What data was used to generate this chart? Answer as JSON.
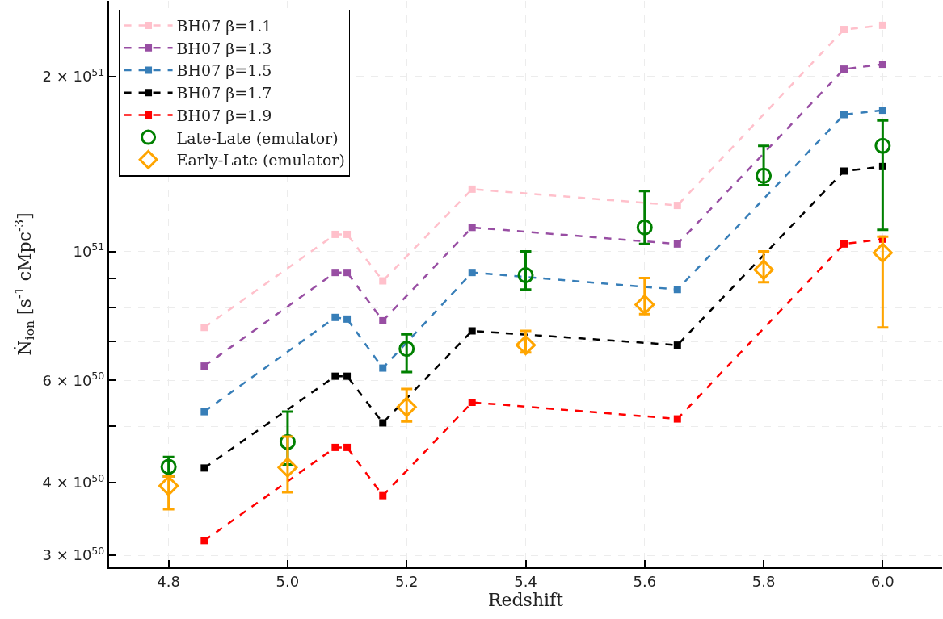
{
  "chart_data": {
    "type": "line",
    "xlabel": "Redshift",
    "ylabel": "Ṅ$_{ion}$ [s$^{-1}$ cMpc$^{-3}$]",
    "log": "y",
    "grid": true,
    "legend": "top left",
    "xlim": [
      4.7,
      6.1
    ],
    "xticks": [
      {
        "value": 4.8,
        "label": "4.8"
      },
      {
        "value": 5.0,
        "label": "5.0"
      },
      {
        "value": 5.2,
        "label": "5.2"
      },
      {
        "value": 5.4,
        "label": "5.4"
      },
      {
        "value": 5.6,
        "label": "5.6"
      },
      {
        "value": 5.8,
        "label": "5.8"
      },
      {
        "value": 6.0,
        "label": "6.0"
      }
    ],
    "ylim": [
      2.86e+50,
      2.7e+51
    ],
    "yticks": [
      {
        "value": 3e+50,
        "label": "3 × 10$^{50}$"
      },
      {
        "value": 4e+50,
        "label": "4 × 10$^{50}$"
      },
      {
        "value": 5e+50,
        "label": null
      },
      {
        "value": 6e+50,
        "label": "6 × 10$^{50}$"
      },
      {
        "value": 7e+50,
        "label": null
      },
      {
        "value": 8e+50,
        "label": null
      },
      {
        "value": 9e+50,
        "label": null
      },
      {
        "value": 1e+51,
        "label": "10$^{51}$"
      },
      {
        "value": 2e+51,
        "label": "2 × 10$^{51}$"
      }
    ],
    "series": [
      {
        "name": "BH07 β=1.1",
        "marker": "square",
        "line_style": "dashed",
        "color": "#ffc0cb",
        "x": [
          4.86,
          5.08,
          5.1,
          5.16,
          5.31,
          5.655,
          5.935,
          6.0
        ],
        "values": [
          7.4e+50,
          1.07e+51,
          1.07e+51,
          8.9e+50,
          1.28e+51,
          1.2e+51,
          2.41e+51,
          2.45e+51
        ]
      },
      {
        "name": "BH07 β=1.3",
        "marker": "square",
        "line_style": "dashed",
        "color": "#984ea3",
        "x": [
          4.86,
          5.08,
          5.1,
          5.16,
          5.31,
          5.655,
          5.935,
          6.0
        ],
        "values": [
          6.35e+50,
          9.2e+50,
          9.2e+50,
          7.6e+50,
          1.1e+51,
          1.03e+51,
          2.06e+51,
          2.1e+51
        ]
      },
      {
        "name": "BH07 β=1.5",
        "marker": "square",
        "line_style": "dashed",
        "color": "#377eb8",
        "x": [
          4.86,
          5.08,
          5.1,
          5.16,
          5.31,
          5.655,
          5.935,
          6.0
        ],
        "values": [
          5.3e+50,
          7.7e+50,
          7.65e+50,
          6.3e+50,
          9.2e+50,
          8.6e+50,
          1.72e+51,
          1.75e+51
        ]
      },
      {
        "name": "BH07 β=1.7",
        "marker": "square",
        "line_style": "dashed",
        "color": "#000000",
        "x": [
          4.86,
          5.08,
          5.1,
          5.16,
          5.31,
          5.655,
          5.935,
          6.0
        ],
        "values": [
          4.24e+50,
          6.1e+50,
          6.1e+50,
          5.07e+50,
          7.3e+50,
          6.9e+50,
          1.375e+51,
          1.4e+51
        ]
      },
      {
        "name": "BH07 β=1.9",
        "marker": "square",
        "line_style": "dashed",
        "color": "#ff0000",
        "x": [
          4.86,
          5.08,
          5.1,
          5.16,
          5.31,
          5.655,
          5.935,
          6.0
        ],
        "values": [
          3.18e+50,
          4.6e+50,
          4.6e+50,
          3.8e+50,
          5.5e+50,
          5.15e+50,
          1.03e+51,
          1.05e+51
        ]
      },
      {
        "name": "Late-Late (emulator)",
        "type": "scatter",
        "marker": "circle",
        "color": "#008000",
        "x": [
          4.8,
          5.0,
          5.2,
          5.4,
          5.6,
          5.8,
          6.0
        ],
        "values": [
          4.26e+50,
          4.7e+50,
          6.8e+50,
          9.1e+50,
          1.1e+51,
          1.35e+51,
          1.52e+51
        ],
        "errors": [
          [
            4.1e+50,
            4.43e+50
          ],
          [
            4.3e+50,
            5.3e+50
          ],
          [
            6.2e+50,
            7.2e+50
          ],
          [
            8.6e+50,
            1e+51
          ],
          [
            1.03e+51,
            1.27e+51
          ],
          [
            1.3e+51,
            1.52e+51
          ],
          [
            1.09e+51,
            1.68e+51
          ]
        ]
      },
      {
        "name": "Early-Late (emulator)",
        "type": "scatter",
        "marker": "diamond",
        "color": "#ffa500",
        "x": [
          4.8,
          5.0,
          5.2,
          5.4,
          5.6,
          5.8,
          6.0
        ],
        "values": [
          3.95e+50,
          4.25e+50,
          5.4e+50,
          6.9e+50,
          8.1e+50,
          9.3e+50,
          9.95e+50
        ],
        "errors": [
          [
            3.6e+50,
            4.1e+50
          ],
          [
            3.85e+50,
            4.8e+50
          ],
          [
            5.1e+50,
            5.8e+50
          ],
          [
            6.7e+50,
            7.3e+50
          ],
          [
            7.8e+50,
            9e+50
          ],
          [
            8.85e+50,
            1e+51
          ],
          [
            7.4e+50,
            1.06e+51
          ]
        ]
      }
    ]
  }
}
